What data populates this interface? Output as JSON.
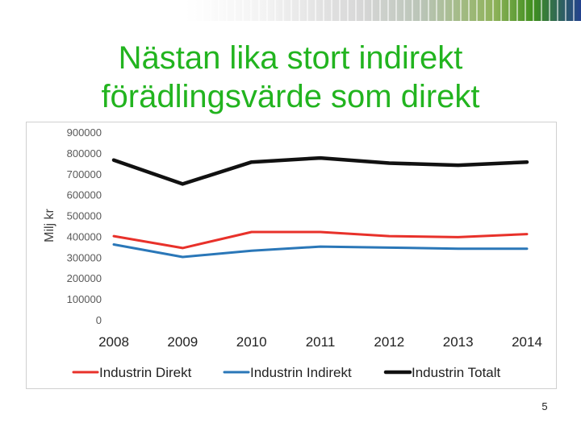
{
  "slide": {
    "title_line1": "Nästan lika stort indirekt",
    "title_line2": "förädlingsvärde som direkt",
    "page_number": "5"
  },
  "chart_data": {
    "type": "line",
    "title": "",
    "xlabel": "",
    "ylabel": "Milj kr",
    "ylim": [
      0,
      900000
    ],
    "yticks": [
      "900000",
      "800000",
      "700000",
      "600000",
      "500000",
      "400000",
      "300000",
      "200000",
      "100000",
      "0"
    ],
    "ytick_values": [
      900000,
      800000,
      700000,
      600000,
      500000,
      400000,
      300000,
      200000,
      100000,
      0
    ],
    "x": [
      "2008",
      "2009",
      "2010",
      "2011",
      "2012",
      "2013",
      "2014"
    ],
    "grid": false,
    "legend_position": "bottom",
    "series": [
      {
        "name": "Industrin Direkt",
        "color": "#e8312a",
        "values": [
          405000,
          348000,
          425000,
          425000,
          405000,
          400000,
          415000
        ]
      },
      {
        "name": "Industrin Indirekt",
        "color": "#2a77b8",
        "values": [
          365000,
          305000,
          335000,
          355000,
          350000,
          345000,
          345000
        ]
      },
      {
        "name": "Industrin Totalt",
        "color": "#111111",
        "values": [
          770000,
          655000,
          760000,
          780000,
          755000,
          745000,
          760000
        ]
      }
    ]
  }
}
